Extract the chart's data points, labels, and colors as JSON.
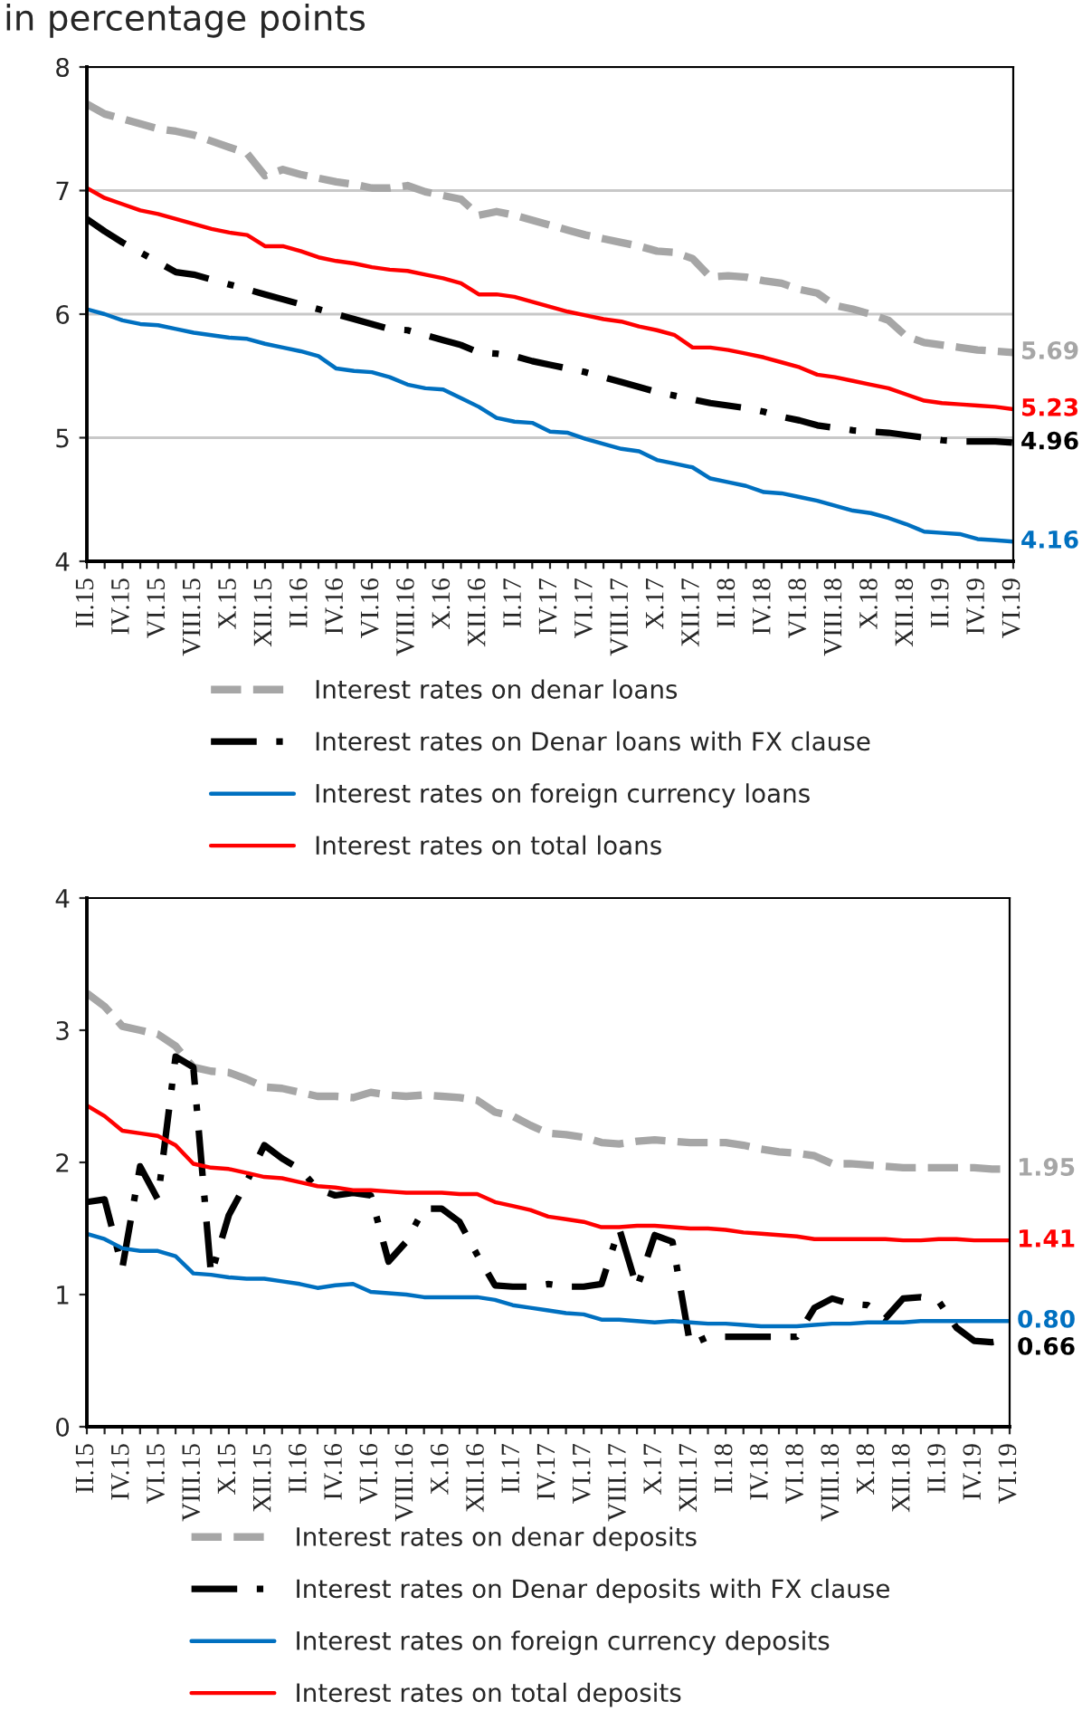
{
  "chart_data": [
    {
      "type": "line",
      "title": "in percentage points",
      "categories": [
        "II.15",
        null,
        "IV.15",
        null,
        "VI.15",
        null,
        "VIII.15",
        null,
        "X.15",
        null,
        "XII.15",
        null,
        "II.16",
        null,
        "IV.16",
        null,
        "VI.16",
        null,
        "VIII.16",
        null,
        "X.16",
        null,
        "XII.16",
        null,
        "II.17",
        null,
        "IV.17",
        null,
        "VI.17",
        null,
        "VIII.17",
        null,
        "X.17",
        null,
        "XII.17",
        null,
        "II.18",
        null,
        "IV.18",
        null,
        "VI.18",
        null,
        "VIII.18",
        null,
        "X.18",
        null,
        "XII.18",
        null,
        "II.19",
        null,
        "IV.19",
        null,
        "VI.19"
      ],
      "ylim": [
        4,
        8
      ],
      "yticks": [
        4,
        5,
        6,
        7,
        8
      ],
      "grid": "y",
      "legend": "bottom",
      "series": [
        {
          "name": "Interest rates on denar loans",
          "color": "#a6a6a6",
          "line_style": "dashed",
          "values": [
            7.7,
            7.62,
            7.58,
            7.54,
            7.5,
            7.48,
            7.45,
            7.4,
            7.35,
            7.3,
            7.12,
            7.17,
            7.13,
            7.1,
            7.07,
            7.05,
            7.02,
            7.02,
            7.04,
            6.99,
            6.96,
            6.93,
            6.8,
            6.83,
            6.8,
            6.76,
            6.72,
            6.68,
            6.64,
            6.61,
            6.58,
            6.55,
            6.51,
            6.5,
            6.45,
            6.3,
            6.31,
            6.3,
            6.27,
            6.25,
            6.2,
            6.17,
            6.07,
            6.04,
            6.0,
            5.95,
            5.82,
            5.77,
            5.75,
            5.73,
            5.71,
            5.7,
            5.69
          ],
          "value_labels": [
            null,
            null,
            null,
            null,
            null,
            null,
            null,
            null,
            null,
            null,
            null,
            null,
            null,
            null,
            null,
            null,
            null,
            null,
            null,
            null,
            null,
            null,
            null,
            null,
            null,
            null,
            null,
            null,
            null,
            null,
            null,
            null,
            null,
            null,
            null,
            null,
            null,
            null,
            null,
            null,
            null,
            null,
            null,
            null,
            null,
            null,
            null,
            null,
            null,
            null,
            null,
            null,
            "5.69"
          ]
        },
        {
          "name": "Interest rates on Denar loans with FX clause",
          "color": "#000000",
          "line_style": "dashdot",
          "values": [
            6.77,
            6.67,
            6.58,
            6.5,
            6.42,
            6.34,
            6.32,
            6.28,
            6.24,
            6.2,
            6.16,
            6.12,
            6.08,
            6.04,
            6.0,
            5.96,
            5.92,
            5.88,
            5.87,
            5.83,
            5.79,
            5.75,
            5.69,
            5.68,
            5.66,
            5.62,
            5.59,
            5.56,
            5.53,
            5.49,
            5.45,
            5.41,
            5.37,
            5.34,
            5.31,
            5.28,
            5.26,
            5.24,
            5.21,
            5.17,
            5.14,
            5.1,
            5.08,
            5.06,
            5.05,
            5.04,
            5.02,
            5.0,
            4.98,
            4.97,
            4.97,
            4.97,
            4.96
          ],
          "value_labels": [
            null,
            null,
            null,
            null,
            null,
            null,
            null,
            null,
            null,
            null,
            null,
            null,
            null,
            null,
            null,
            null,
            null,
            null,
            null,
            null,
            null,
            null,
            null,
            null,
            null,
            null,
            null,
            null,
            null,
            null,
            null,
            null,
            null,
            null,
            null,
            null,
            null,
            null,
            null,
            null,
            null,
            null,
            null,
            null,
            null,
            null,
            null,
            null,
            null,
            null,
            null,
            null,
            "4.96"
          ]
        },
        {
          "name": "Interest rates on foreign currency loans",
          "color": "#0070c0",
          "line_style": "solid",
          "values": [
            6.04,
            6.0,
            5.95,
            5.92,
            5.91,
            5.88,
            5.85,
            5.83,
            5.81,
            5.8,
            5.76,
            5.73,
            5.7,
            5.66,
            5.56,
            5.54,
            5.53,
            5.49,
            5.43,
            5.4,
            5.39,
            5.32,
            5.25,
            5.16,
            5.13,
            5.12,
            5.05,
            5.04,
            4.99,
            4.95,
            4.91,
            4.89,
            4.82,
            4.79,
            4.76,
            4.67,
            4.64,
            4.61,
            4.56,
            4.55,
            4.52,
            4.49,
            4.45,
            4.41,
            4.39,
            4.35,
            4.3,
            4.24,
            4.23,
            4.22,
            4.18,
            4.17,
            4.16
          ],
          "value_labels": [
            null,
            null,
            null,
            null,
            null,
            null,
            null,
            null,
            null,
            null,
            null,
            null,
            null,
            null,
            null,
            null,
            null,
            null,
            null,
            null,
            null,
            null,
            null,
            null,
            null,
            null,
            null,
            null,
            null,
            null,
            null,
            null,
            null,
            null,
            null,
            null,
            null,
            null,
            null,
            null,
            null,
            null,
            null,
            null,
            null,
            null,
            null,
            null,
            null,
            null,
            null,
            null,
            "4.16"
          ]
        },
        {
          "name": "Interest rates on total loans",
          "color": "#ff0000",
          "line_style": "solid",
          "values": [
            7.02,
            6.94,
            6.89,
            6.84,
            6.81,
            6.77,
            6.73,
            6.69,
            6.66,
            6.64,
            6.55,
            6.55,
            6.51,
            6.46,
            6.43,
            6.41,
            6.38,
            6.36,
            6.35,
            6.32,
            6.29,
            6.25,
            6.16,
            6.16,
            6.14,
            6.1,
            6.06,
            6.02,
            5.99,
            5.96,
            5.94,
            5.9,
            5.87,
            5.83,
            5.73,
            5.73,
            5.71,
            5.68,
            5.65,
            5.61,
            5.57,
            5.51,
            5.49,
            5.46,
            5.43,
            5.4,
            5.35,
            5.3,
            5.28,
            5.27,
            5.26,
            5.25,
            5.23
          ],
          "value_labels": [
            null,
            null,
            null,
            null,
            null,
            null,
            null,
            null,
            null,
            null,
            null,
            null,
            null,
            null,
            null,
            null,
            null,
            null,
            null,
            null,
            null,
            null,
            null,
            null,
            null,
            null,
            null,
            null,
            null,
            null,
            null,
            null,
            null,
            null,
            null,
            null,
            null,
            null,
            null,
            null,
            null,
            null,
            null,
            null,
            null,
            null,
            null,
            null,
            null,
            null,
            null,
            null,
            "5.23"
          ]
        }
      ]
    },
    {
      "type": "line",
      "categories": [
        "II.15",
        null,
        "IV.15",
        null,
        "VI.15",
        null,
        "VIII.15",
        null,
        "X.15",
        null,
        "XII.15",
        null,
        "II.16",
        null,
        "IV.16",
        null,
        "VI.16",
        null,
        "VIII.16",
        null,
        "X.16",
        null,
        "XII.16",
        null,
        "II.17",
        null,
        "IV.17",
        null,
        "VI.17",
        null,
        "VIII.17",
        null,
        "X.17",
        null,
        "XII.17",
        null,
        "II.18",
        null,
        "IV.18",
        null,
        "VI.18",
        null,
        "VIII.18",
        null,
        "X.18",
        null,
        "XII.18",
        null,
        "II.19",
        null,
        "IV.19",
        null,
        "VI.19"
      ],
      "ylim": [
        0,
        4
      ],
      "yticks": [
        0,
        1,
        2,
        3,
        4
      ],
      "legend": "bottom",
      "series": [
        {
          "name": "Interest rates on denar deposits",
          "color": "#a6a6a6",
          "line_style": "dashed",
          "values": [
            3.28,
            3.18,
            3.03,
            3.0,
            2.97,
            2.88,
            2.72,
            2.69,
            2.68,
            2.63,
            2.57,
            2.56,
            2.53,
            2.5,
            2.5,
            2.49,
            2.53,
            2.51,
            2.5,
            2.51,
            2.5,
            2.49,
            2.47,
            2.38,
            2.35,
            2.28,
            2.22,
            2.21,
            2.19,
            2.15,
            2.14,
            2.16,
            2.17,
            2.16,
            2.15,
            2.15,
            2.15,
            2.13,
            2.1,
            2.08,
            2.07,
            2.05,
            1.99,
            1.99,
            1.98,
            1.97,
            1.96,
            1.96,
            1.96,
            1.96,
            1.96,
            1.95,
            1.95
          ],
          "value_labels": [
            null,
            null,
            null,
            null,
            null,
            null,
            null,
            null,
            null,
            null,
            null,
            null,
            null,
            null,
            null,
            null,
            null,
            null,
            null,
            null,
            null,
            null,
            null,
            null,
            null,
            null,
            null,
            null,
            null,
            null,
            null,
            null,
            null,
            null,
            null,
            null,
            null,
            null,
            null,
            null,
            null,
            null,
            null,
            null,
            null,
            null,
            null,
            null,
            null,
            null,
            null,
            null,
            "1.95"
          ]
        },
        {
          "name": "Interest rates on Denar deposits with FX clause",
          "color": "#000000",
          "line_style": "dashdot",
          "values": [
            1.7,
            1.72,
            1.2,
            1.97,
            1.72,
            2.8,
            2.72,
            1.15,
            1.6,
            1.85,
            2.13,
            2.03,
            1.95,
            1.8,
            1.75,
            1.77,
            1.75,
            1.25,
            1.4,
            1.65,
            1.65,
            1.55,
            1.3,
            1.07,
            1.06,
            1.06,
            1.08,
            1.06,
            1.06,
            1.08,
            1.5,
            1.05,
            1.45,
            1.4,
            0.62,
            0.68,
            0.68,
            0.68,
            0.68,
            0.68,
            0.68,
            0.9,
            0.97,
            0.93,
            0.92,
            0.82,
            0.97,
            0.98,
            0.95,
            0.75,
            0.65,
            0.64,
            0.66
          ],
          "value_labels": [
            null,
            null,
            null,
            null,
            null,
            null,
            null,
            null,
            null,
            null,
            null,
            null,
            null,
            null,
            null,
            null,
            null,
            null,
            null,
            null,
            null,
            null,
            null,
            null,
            null,
            null,
            null,
            null,
            null,
            null,
            null,
            null,
            null,
            null,
            null,
            null,
            null,
            null,
            null,
            null,
            null,
            null,
            null,
            null,
            null,
            null,
            null,
            null,
            null,
            null,
            null,
            null,
            "0.66"
          ]
        },
        {
          "name": "Interest rates on foreign currency deposits",
          "color": "#0070c0",
          "line_style": "solid",
          "values": [
            1.46,
            1.42,
            1.35,
            1.33,
            1.33,
            1.29,
            1.16,
            1.15,
            1.13,
            1.12,
            1.12,
            1.1,
            1.08,
            1.05,
            1.07,
            1.08,
            1.02,
            1.01,
            1.0,
            0.98,
            0.98,
            0.98,
            0.98,
            0.96,
            0.92,
            0.9,
            0.88,
            0.86,
            0.85,
            0.81,
            0.81,
            0.8,
            0.79,
            0.8,
            0.79,
            0.78,
            0.78,
            0.77,
            0.76,
            0.76,
            0.76,
            0.77,
            0.78,
            0.78,
            0.79,
            0.79,
            0.79,
            0.8,
            0.8,
            0.8,
            0.8,
            0.8,
            0.8
          ],
          "value_labels": [
            null,
            null,
            null,
            null,
            null,
            null,
            null,
            null,
            null,
            null,
            null,
            null,
            null,
            null,
            null,
            null,
            null,
            null,
            null,
            null,
            null,
            null,
            null,
            null,
            null,
            null,
            null,
            null,
            null,
            null,
            null,
            null,
            null,
            null,
            null,
            null,
            null,
            null,
            null,
            null,
            null,
            null,
            null,
            null,
            null,
            null,
            null,
            null,
            null,
            null,
            null,
            null,
            "0.80"
          ]
        },
        {
          "name": "Interest rates on total deposits",
          "color": "#ff0000",
          "line_style": "solid",
          "values": [
            2.43,
            2.35,
            2.24,
            2.22,
            2.2,
            2.13,
            1.99,
            1.96,
            1.95,
            1.92,
            1.89,
            1.88,
            1.85,
            1.82,
            1.81,
            1.79,
            1.79,
            1.78,
            1.77,
            1.77,
            1.77,
            1.76,
            1.76,
            1.7,
            1.67,
            1.64,
            1.59,
            1.57,
            1.55,
            1.51,
            1.51,
            1.52,
            1.52,
            1.51,
            1.5,
            1.5,
            1.49,
            1.47,
            1.46,
            1.45,
            1.44,
            1.42,
            1.42,
            1.42,
            1.42,
            1.42,
            1.41,
            1.41,
            1.42,
            1.42,
            1.41,
            1.41,
            1.41
          ],
          "value_labels": [
            null,
            null,
            null,
            null,
            null,
            null,
            null,
            null,
            null,
            null,
            null,
            null,
            null,
            null,
            null,
            null,
            null,
            null,
            null,
            null,
            null,
            null,
            null,
            null,
            null,
            null,
            null,
            null,
            null,
            null,
            null,
            null,
            null,
            null,
            null,
            null,
            null,
            null,
            null,
            null,
            null,
            null,
            null,
            null,
            null,
            null,
            null,
            null,
            null,
            null,
            null,
            null,
            "1.41"
          ]
        }
      ]
    }
  ]
}
